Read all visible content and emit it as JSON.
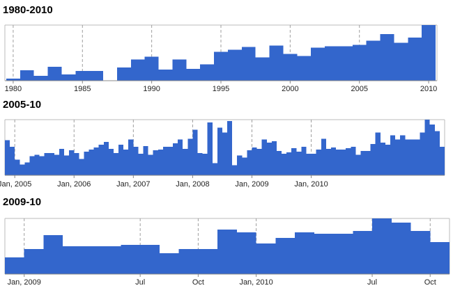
{
  "chart_data": [
    {
      "type": "bar",
      "title": "1980-2010",
      "x": [
        1980,
        1981,
        1982,
        1983,
        1984,
        1985,
        1986,
        1987,
        1988,
        1989,
        1990,
        1991,
        1992,
        1993,
        1994,
        1995,
        1996,
        1997,
        1998,
        1999,
        2000,
        2001,
        2002,
        2003,
        2004,
        2005,
        2006,
        2007,
        2008,
        2009,
        2010
      ],
      "values": [
        3,
        15,
        7,
        20,
        9,
        14,
        14,
        0,
        19,
        31,
        35,
        16,
        31,
        17,
        24,
        42,
        45,
        49,
        34,
        51,
        39,
        36,
        48,
        50,
        50,
        52,
        58,
        68,
        55,
        63,
        81
      ],
      "xlim": [
        1979.4,
        2010.6
      ],
      "ylim": [
        0,
        81
      ],
      "x_tick_labels": [
        "1980",
        "1985",
        "1990",
        "1995",
        "2000",
        "2005",
        "2010"
      ],
      "x_tick_values": [
        1980,
        1985,
        1990,
        1995,
        2000,
        2005,
        2010
      ],
      "grid": true,
      "color": "#3366cc"
    },
    {
      "type": "bar",
      "title": "2005-10",
      "x_start": "2004-11-01",
      "x_tick_labels": [
        "Jan, 2005",
        "Jan, 2006",
        "Jan, 2007",
        "Jan, 2008",
        "Jan, 2009",
        "Jan, 2010"
      ],
      "x_tick_values": [
        "2005-01-01",
        "2006-01-01",
        "2007-01-01",
        "2008-01-01",
        "2009-01-01",
        "2010-01-01"
      ],
      "values": [
        49,
        40,
        22,
        15,
        18,
        27,
        29,
        27,
        31,
        31,
        29,
        37,
        28,
        35,
        31,
        23,
        33,
        36,
        39,
        43,
        47,
        37,
        31,
        43,
        36,
        50,
        40,
        30,
        41,
        29,
        35,
        36,
        40,
        40,
        45,
        50,
        37,
        51,
        64,
        31,
        30,
        74,
        17,
        67,
        60,
        76,
        14,
        28,
        25,
        35,
        39,
        37,
        50,
        46,
        48,
        34,
        30,
        32,
        38,
        33,
        40,
        30,
        30,
        36,
        51,
        37,
        39,
        36,
        36,
        38,
        40,
        29,
        34,
        34,
        44,
        60,
        46,
        43,
        56,
        50,
        56,
        50,
        50,
        50,
        60,
        78,
        71,
        62,
        40
      ],
      "ylim": [
        0,
        78
      ],
      "grid": true,
      "color": "#3366cc"
    },
    {
      "type": "bar",
      "title": "2009-10",
      "x_start": "2008-12-01",
      "x_tick_labels": [
        "Jan, 2009",
        "Jul",
        "Oct",
        "Jan, 2010",
        "Jul",
        "Oct"
      ],
      "x_tick_values": [
        "2009-01-01",
        "2009-07-01",
        "2009-10-01",
        "2010-01-01",
        "2010-07-01",
        "2010-10-01"
      ],
      "values": [
        12,
        18,
        28,
        20,
        20,
        20,
        21,
        21,
        15,
        18,
        18,
        32,
        30,
        22,
        26,
        30,
        29,
        29,
        31,
        40,
        37,
        31,
        23
      ],
      "ylim": [
        0,
        40
      ],
      "grid": true,
      "color": "#3366cc"
    }
  ]
}
